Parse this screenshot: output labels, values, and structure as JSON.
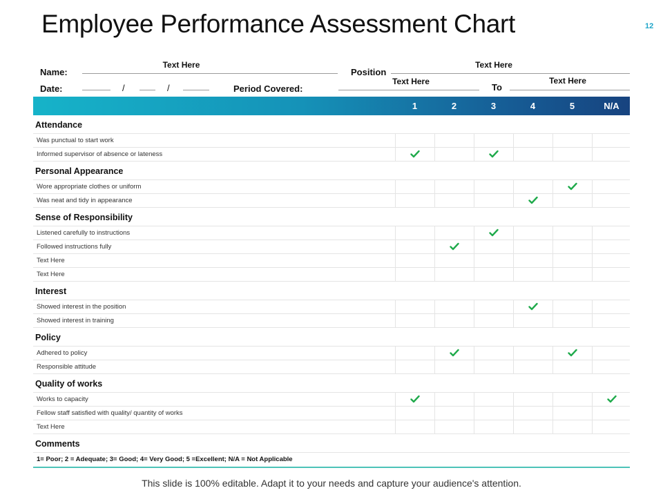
{
  "title": "Employee Performance Assessment Chart",
  "page_number": "12",
  "header": {
    "name_label": "Name:",
    "name_value": "Text Here",
    "position_label": "Position",
    "position_value": "Text Here",
    "date_label": "Date:",
    "date_separator": "/",
    "period_label": "Period Covered:",
    "period_from": "Text Here",
    "to_label": "To",
    "period_to": "Text Here"
  },
  "columns": [
    "1",
    "2",
    "3",
    "4",
    "5",
    "N/A"
  ],
  "sections": [
    {
      "title": "Attendance",
      "rows": [
        {
          "label": "Was punctual to start work",
          "check": null
        },
        {
          "label": "Informed supervisor of absence or lateness",
          "check": [
            0,
            2
          ]
        }
      ]
    },
    {
      "title": "Personal Appearance",
      "rows": [
        {
          "label": "Wore appropriate clothes or uniform",
          "check": [
            4
          ]
        },
        {
          "label": "Was neat and tidy in appearance",
          "check": [
            3
          ]
        }
      ]
    },
    {
      "title": "Sense of Responsibility",
      "rows": [
        {
          "label": "Listened carefully to instructions",
          "check": [
            2
          ]
        },
        {
          "label": "Followed instructions fully",
          "check": [
            1
          ]
        },
        {
          "label": "Text Here",
          "check": null
        },
        {
          "label": "Text Here",
          "check": null
        }
      ]
    },
    {
      "title": "Interest",
      "rows": [
        {
          "label": "Showed interest in the position",
          "check": [
            3
          ]
        },
        {
          "label": "Showed interest in training",
          "check": null
        }
      ]
    },
    {
      "title": "Policy",
      "rows": [
        {
          "label": "Adhered to policy",
          "check": [
            1,
            4
          ]
        },
        {
          "label": "Responsible attitude",
          "check": null
        }
      ]
    },
    {
      "title": "Quality of works",
      "rows": [
        {
          "label": "Works  to capacity",
          "check": [
            0,
            5
          ]
        },
        {
          "label": "Fellow staff satisfied with quality/ quantity of works",
          "check": null
        },
        {
          "label": "Text Here",
          "check": null
        }
      ]
    },
    {
      "title": "Comments",
      "rows": []
    }
  ],
  "legend": "1= Poor; 2 = Adequate; 3= Good; 4= Very Good; 5 =Excellent; N/A = Not Applicable",
  "footer": "This slide is 100% editable. Adapt it to your needs and capture your audience's attention.",
  "colors": {
    "check": "#1faa4b",
    "band_start": "#16b3c9",
    "band_end": "#17437f",
    "accent": "#1fa5c9"
  }
}
